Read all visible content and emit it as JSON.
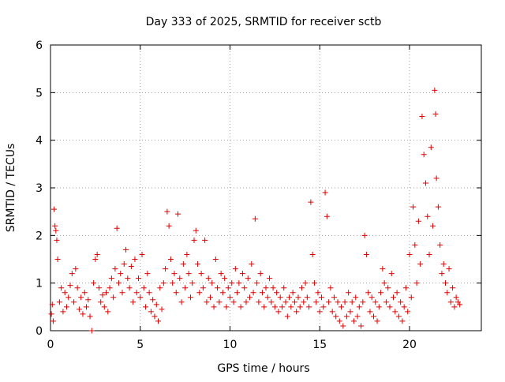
{
  "chart_data": {
    "type": "scatter",
    "title": "Day 333 of 2025, SRMTID for receiver sctb",
    "xlabel": "GPS time / hours",
    "ylabel": "SRMTID / TECUs",
    "xlim": [
      0,
      24
    ],
    "ylim": [
      0,
      6
    ],
    "x_ticks": [
      0,
      5,
      10,
      15,
      20
    ],
    "x_tick_labels": [
      "0",
      "5",
      "10",
      "15",
      "20"
    ],
    "y_ticks": [
      0,
      1,
      2,
      3,
      4,
      5,
      6
    ],
    "y_tick_labels": [
      "0",
      "1",
      "2",
      "3",
      "4",
      "5",
      "6"
    ],
    "grid": true,
    "marker": "+",
    "series": [
      {
        "name": "SRMTID",
        "color": "#e00000",
        "points": [
          [
            0.05,
            0.35
          ],
          [
            0.1,
            0.55
          ],
          [
            0.15,
            0.2
          ],
          [
            0.2,
            2.55
          ],
          [
            0.25,
            2.2
          ],
          [
            0.3,
            2.1
          ],
          [
            0.35,
            1.9
          ],
          [
            0.4,
            1.5
          ],
          [
            0.5,
            0.6
          ],
          [
            0.6,
            0.9
          ],
          [
            0.7,
            0.4
          ],
          [
            0.8,
            0.8
          ],
          [
            0.9,
            0.5
          ],
          [
            1.0,
            0.7
          ],
          [
            1.1,
            0.95
          ],
          [
            1.2,
            1.2
          ],
          [
            1.3,
            0.6
          ],
          [
            1.4,
            1.3
          ],
          [
            1.5,
            0.9
          ],
          [
            1.6,
            0.45
          ],
          [
            1.7,
            0.7
          ],
          [
            1.8,
            0.35
          ],
          [
            1.9,
            0.8
          ],
          [
            2.0,
            0.5
          ],
          [
            2.1,
            0.65
          ],
          [
            2.2,
            0.3
          ],
          [
            2.3,
            0.0
          ],
          [
            2.4,
            1.0
          ],
          [
            2.5,
            1.5
          ],
          [
            2.6,
            1.6
          ],
          [
            2.7,
            0.9
          ],
          [
            2.8,
            0.6
          ],
          [
            2.9,
            0.75
          ],
          [
            3.0,
            0.5
          ],
          [
            3.1,
            0.8
          ],
          [
            3.2,
            0.4
          ],
          [
            3.3,
            0.9
          ],
          [
            3.4,
            1.1
          ],
          [
            3.5,
            0.7
          ],
          [
            3.6,
            1.3
          ],
          [
            3.7,
            2.15
          ],
          [
            3.8,
            1.0
          ],
          [
            3.9,
            1.2
          ],
          [
            4.0,
            0.8
          ],
          [
            4.1,
            1.4
          ],
          [
            4.2,
            1.7
          ],
          [
            4.3,
            1.1
          ],
          [
            4.4,
            0.9
          ],
          [
            4.5,
            1.35
          ],
          [
            4.6,
            0.6
          ],
          [
            4.7,
            1.5
          ],
          [
            4.8,
            0.8
          ],
          [
            4.9,
            1.1
          ],
          [
            5.0,
            0.7
          ],
          [
            5.1,
            1.6
          ],
          [
            5.2,
            0.9
          ],
          [
            5.3,
            0.5
          ],
          [
            5.4,
            1.2
          ],
          [
            5.5,
            0.8
          ],
          [
            5.6,
            0.4
          ],
          [
            5.7,
            0.65
          ],
          [
            5.8,
            0.3
          ],
          [
            5.9,
            0.55
          ],
          [
            6.0,
            0.2
          ],
          [
            6.1,
            0.9
          ],
          [
            6.2,
            0.45
          ],
          [
            6.3,
            1.0
          ],
          [
            6.4,
            1.3
          ],
          [
            6.5,
            2.5
          ],
          [
            6.6,
            2.2
          ],
          [
            6.7,
            1.5
          ],
          [
            6.8,
            1.0
          ],
          [
            6.9,
            1.2
          ],
          [
            7.0,
            0.8
          ],
          [
            7.1,
            2.45
          ],
          [
            7.2,
            1.1
          ],
          [
            7.3,
            0.6
          ],
          [
            7.4,
            1.4
          ],
          [
            7.5,
            0.9
          ],
          [
            7.6,
            1.6
          ],
          [
            7.7,
            1.2
          ],
          [
            7.8,
            0.7
          ],
          [
            7.9,
            1.0
          ],
          [
            8.0,
            1.9
          ],
          [
            8.1,
            2.1
          ],
          [
            8.2,
            1.4
          ],
          [
            8.3,
            0.8
          ],
          [
            8.4,
            1.2
          ],
          [
            8.5,
            0.9
          ],
          [
            8.6,
            1.9
          ],
          [
            8.7,
            0.6
          ],
          [
            8.8,
            1.1
          ],
          [
            8.9,
            0.7
          ],
          [
            9.0,
            1.0
          ],
          [
            9.1,
            0.5
          ],
          [
            9.2,
            1.5
          ],
          [
            9.3,
            0.9
          ],
          [
            9.4,
            0.6
          ],
          [
            9.5,
            1.2
          ],
          [
            9.6,
            0.8
          ],
          [
            9.7,
            1.1
          ],
          [
            9.8,
            0.5
          ],
          [
            9.9,
            0.9
          ],
          [
            10.0,
            0.7
          ],
          [
            10.1,
            1.0
          ],
          [
            10.2,
            0.6
          ],
          [
            10.3,
            1.3
          ],
          [
            10.4,
            0.8
          ],
          [
            10.5,
            1.0
          ],
          [
            10.6,
            0.5
          ],
          [
            10.7,
            1.2
          ],
          [
            10.8,
            0.9
          ],
          [
            10.9,
            0.6
          ],
          [
            11.0,
            1.1
          ],
          [
            11.1,
            0.7
          ],
          [
            11.2,
            1.4
          ],
          [
            11.3,
            0.8
          ],
          [
            11.4,
            2.35
          ],
          [
            11.5,
            1.0
          ],
          [
            11.6,
            0.6
          ],
          [
            11.7,
            1.2
          ],
          [
            11.8,
            0.8
          ],
          [
            11.9,
            0.5
          ],
          [
            12.0,
            0.9
          ],
          [
            12.1,
            0.7
          ],
          [
            12.2,
            1.1
          ],
          [
            12.3,
            0.6
          ],
          [
            12.4,
            0.9
          ],
          [
            12.5,
            0.5
          ],
          [
            12.6,
            0.8
          ],
          [
            12.7,
            0.4
          ],
          [
            12.8,
            0.7
          ],
          [
            12.9,
            0.5
          ],
          [
            13.0,
            0.9
          ],
          [
            13.1,
            0.6
          ],
          [
            13.2,
            0.3
          ],
          [
            13.3,
            0.7
          ],
          [
            13.4,
            0.5
          ],
          [
            13.5,
            0.8
          ],
          [
            13.6,
            0.6
          ],
          [
            13.7,
            0.4
          ],
          [
            13.8,
            0.7
          ],
          [
            13.9,
            0.5
          ],
          [
            14.0,
            0.9
          ],
          [
            14.1,
            0.6
          ],
          [
            14.2,
            1.0
          ],
          [
            14.3,
            0.7
          ],
          [
            14.4,
            0.5
          ],
          [
            14.5,
            2.7
          ],
          [
            14.6,
            1.6
          ],
          [
            14.7,
            1.0
          ],
          [
            14.8,
            0.6
          ],
          [
            14.9,
            0.8
          ],
          [
            15.0,
            0.4
          ],
          [
            15.1,
            0.7
          ],
          [
            15.2,
            0.5
          ],
          [
            15.3,
            2.9
          ],
          [
            15.4,
            2.4
          ],
          [
            15.5,
            0.6
          ],
          [
            15.6,
            0.9
          ],
          [
            15.7,
            0.4
          ],
          [
            15.8,
            0.7
          ],
          [
            15.9,
            0.3
          ],
          [
            16.0,
            0.6
          ],
          [
            16.1,
            0.2
          ],
          [
            16.2,
            0.5
          ],
          [
            16.3,
            0.1
          ],
          [
            16.4,
            0.6
          ],
          [
            16.5,
            0.3
          ],
          [
            16.6,
            0.8
          ],
          [
            16.7,
            0.4
          ],
          [
            16.8,
            0.6
          ],
          [
            16.9,
            0.2
          ],
          [
            17.0,
            0.7
          ],
          [
            17.1,
            0.3
          ],
          [
            17.2,
            0.5
          ],
          [
            17.3,
            0.1
          ],
          [
            17.4,
            0.6
          ],
          [
            17.5,
            2.0
          ],
          [
            17.6,
            1.6
          ],
          [
            17.7,
            0.8
          ],
          [
            17.8,
            0.4
          ],
          [
            17.9,
            0.7
          ],
          [
            18.0,
            0.3
          ],
          [
            18.1,
            0.6
          ],
          [
            18.2,
            0.2
          ],
          [
            18.3,
            0.5
          ],
          [
            18.4,
            0.8
          ],
          [
            18.5,
            1.3
          ],
          [
            18.6,
            1.0
          ],
          [
            18.7,
            0.6
          ],
          [
            18.8,
            0.9
          ],
          [
            18.9,
            0.5
          ],
          [
            19.0,
            1.2
          ],
          [
            19.1,
            0.7
          ],
          [
            19.2,
            0.4
          ],
          [
            19.3,
            0.8
          ],
          [
            19.4,
            0.3
          ],
          [
            19.5,
            0.6
          ],
          [
            19.6,
            0.2
          ],
          [
            19.7,
            0.5
          ],
          [
            19.8,
            0.9
          ],
          [
            19.9,
            0.4
          ],
          [
            20.0,
            1.6
          ],
          [
            20.1,
            0.7
          ],
          [
            20.2,
            2.6
          ],
          [
            20.3,
            1.8
          ],
          [
            20.4,
            1.0
          ],
          [
            20.5,
            2.3
          ],
          [
            20.6,
            1.4
          ],
          [
            20.7,
            4.5
          ],
          [
            20.8,
            3.7
          ],
          [
            20.9,
            3.1
          ],
          [
            21.0,
            2.4
          ],
          [
            21.1,
            1.6
          ],
          [
            21.2,
            3.85
          ],
          [
            21.3,
            2.2
          ],
          [
            21.4,
            5.05
          ],
          [
            21.45,
            4.55
          ],
          [
            21.5,
            3.2
          ],
          [
            21.6,
            2.6
          ],
          [
            21.7,
            1.8
          ],
          [
            21.8,
            1.2
          ],
          [
            21.9,
            1.4
          ],
          [
            22.0,
            1.0
          ],
          [
            22.1,
            0.8
          ],
          [
            22.2,
            1.3
          ],
          [
            22.3,
            0.6
          ],
          [
            22.4,
            0.9
          ],
          [
            22.5,
            0.5
          ],
          [
            22.6,
            0.7
          ],
          [
            22.7,
            0.6
          ],
          [
            22.8,
            0.55
          ]
        ]
      }
    ]
  }
}
